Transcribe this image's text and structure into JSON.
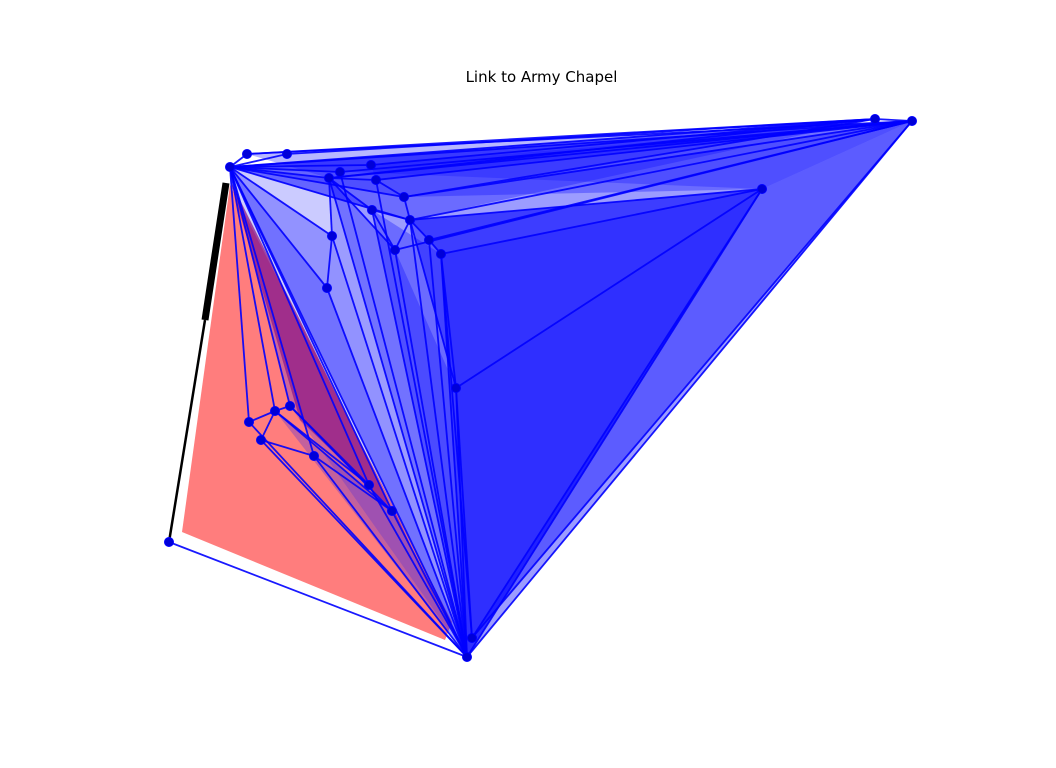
{
  "title": "Link to Army Chapel",
  "colors": {
    "background": "#ffffff",
    "region_fill": "#ff7d7d",
    "mesh_fill": "#1010ff",
    "edge": "#0000ff",
    "node": "#0000d8",
    "link": "#000000"
  }
}
